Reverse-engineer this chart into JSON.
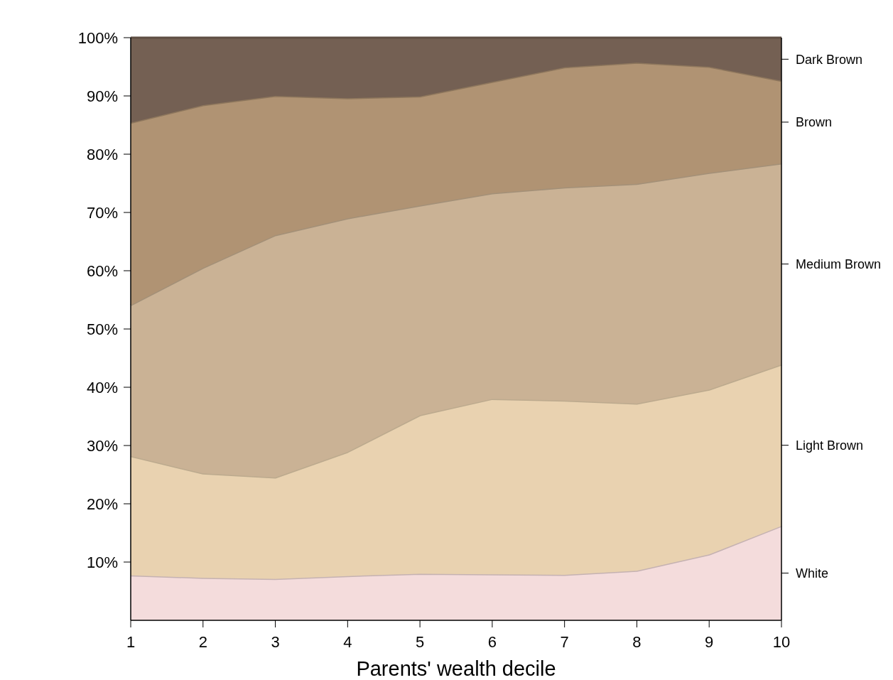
{
  "chart_data": {
    "type": "area",
    "stacked": true,
    "xlabel": "Parents' wealth decile",
    "x": [
      1,
      2,
      3,
      4,
      5,
      6,
      7,
      8,
      9,
      10
    ],
    "xlim": [
      1,
      10
    ],
    "xticks": [
      1,
      2,
      3,
      4,
      5,
      6,
      7,
      8,
      9,
      10
    ],
    "ylim": [
      0,
      100
    ],
    "yticks": [
      {
        "value": 10,
        "label": "10%"
      },
      {
        "value": 20,
        "label": "20%"
      },
      {
        "value": 30,
        "label": "30%"
      },
      {
        "value": 40,
        "label": "40%"
      },
      {
        "value": 50,
        "label": "50%"
      },
      {
        "value": 60,
        "label": "60%"
      },
      {
        "value": 70,
        "label": "70%"
      },
      {
        "value": 80,
        "label": "80%"
      },
      {
        "value": 90,
        "label": "90%"
      },
      {
        "value": 100,
        "label": "100%"
      }
    ],
    "series": [
      {
        "name": "White",
        "color": "#f4dcdc",
        "values": [
          7.7,
          7.3,
          7.1,
          7.6,
          8.0,
          7.9,
          7.8,
          8.5,
          11.3,
          16.2
        ]
      },
      {
        "name": "Light Brown",
        "color": "#e9d2b0",
        "values": [
          20.5,
          17.9,
          17.4,
          21.3,
          27.2,
          30.1,
          29.9,
          28.7,
          28.3,
          27.7
        ]
      },
      {
        "name": "Medium Brown",
        "color": "#cab295",
        "values": [
          25.9,
          35.3,
          41.6,
          40.1,
          36.0,
          35.3,
          36.6,
          37.7,
          37.2,
          34.5
        ]
      },
      {
        "name": "Brown",
        "color": "#b09373",
        "values": [
          31.3,
          27.9,
          23.9,
          20.6,
          18.7,
          19.1,
          20.6,
          20.8,
          18.2,
          14.2
        ]
      },
      {
        "name": "Dark Brown",
        "color": "#746053",
        "values": [
          14.6,
          11.6,
          10.0,
          10.4,
          10.1,
          7.6,
          5.1,
          4.3,
          5.0,
          7.4
        ]
      }
    ]
  }
}
